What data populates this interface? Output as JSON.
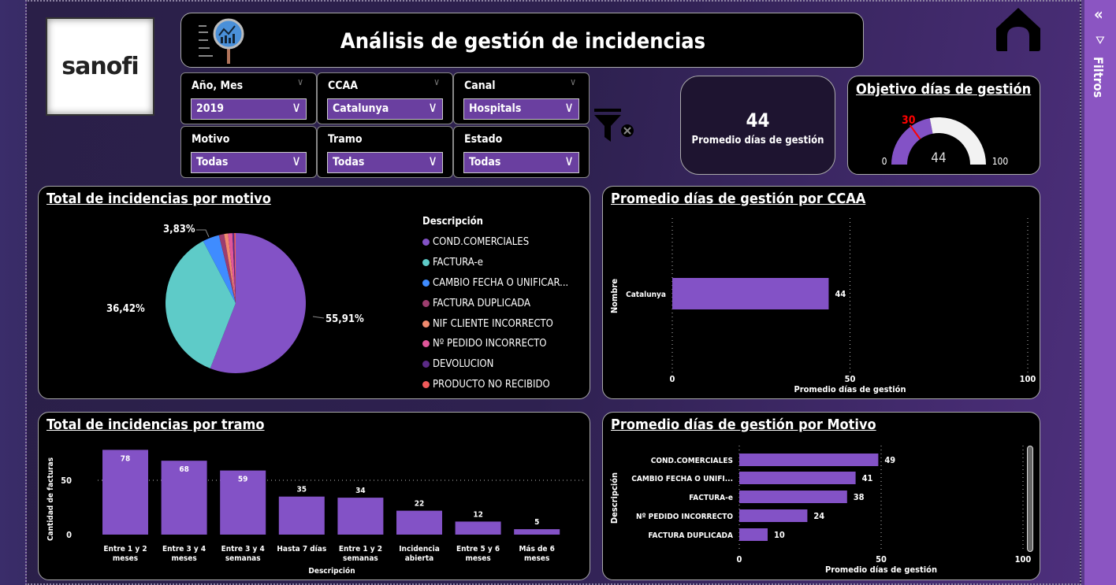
{
  "header": {
    "title": "Análisis de gestión de incidencias",
    "logo_text": "sanofi"
  },
  "slicers": [
    {
      "label": "Año, Mes",
      "value": "2019"
    },
    {
      "label": "CCAA",
      "value": "Catalunya"
    },
    {
      "label": "Canal",
      "value": "Hospitals"
    },
    {
      "label": "Motivo",
      "value": "Todas"
    },
    {
      "label": "Tramo",
      "value": "Todas"
    },
    {
      "label": "Estado",
      "value": "Todas"
    }
  ],
  "card": {
    "value": "44",
    "label": "Promedio días de gestión"
  },
  "gauge": {
    "title": "Objetivo días de gestión",
    "min": 0,
    "max": 100,
    "value": 44,
    "target": 30,
    "min_label": "0",
    "max_label": "100",
    "value_label": "44",
    "target_label": "30"
  },
  "filters_pane": {
    "label": "Filtros"
  },
  "colors": {
    "accent": "#8352c6",
    "target": "#ff0000"
  },
  "chart_data": [
    {
      "type": "pie",
      "title": "Total de incidencias por motivo",
      "legend_title": "Descripción",
      "legend_position": "right",
      "slices": [
        {
          "name": "COND.COMERCIALES",
          "value": 55.91,
          "label": "55,91%",
          "color": "#8352c6"
        },
        {
          "name": "FACTURA-e",
          "value": 36.42,
          "label": "36,42%",
          "color": "#5ecbc8"
        },
        {
          "name": "CAMBIO FECHA O UNIFICAR...",
          "value": 3.83,
          "label": "3,83%",
          "color": "#3f8cff"
        },
        {
          "name": "FACTURA DUPLICADA",
          "value": 1.2,
          "color": "#9c3d6e"
        },
        {
          "name": "NIF CLIENTE INCORRECTO",
          "value": 0.9,
          "color": "#f08a6e"
        },
        {
          "name": "Nº PEDIDO INCORRECTO",
          "value": 1.0,
          "color": "#e0569a"
        },
        {
          "name": "DEVOLUCION",
          "value": 0.4,
          "color": "#5b2a86"
        },
        {
          "name": "PRODUCTO NO RECIBIDO",
          "value": 0.34,
          "color": "#f05a5a"
        }
      ]
    },
    {
      "type": "bar",
      "orientation": "horizontal",
      "title": "Promedio días de gestión por CCAA",
      "ylabel": "Nombre",
      "xlabel": "Promedio días de gestión",
      "xlim": [
        0,
        100
      ],
      "ticks": [
        "0",
        "50",
        "100"
      ],
      "categories": [
        "Catalunya"
      ],
      "values": [
        44
      ]
    },
    {
      "type": "bar",
      "title": "Total de incidencias por tramo",
      "xlabel": "Descripción",
      "ylabel": "Cantidad de facturas",
      "ylim": [
        0,
        80
      ],
      "ticks": [
        "0",
        "50"
      ],
      "categories": [
        [
          "Entre 1 y 2",
          "meses"
        ],
        [
          "Entre 3 y 4",
          "meses"
        ],
        [
          "Entre 3 y 4",
          "semanas"
        ],
        [
          "Hasta 7 días"
        ],
        [
          "Entre 1 y 2",
          "semanas"
        ],
        [
          "Incidencia",
          "abierta"
        ],
        [
          "Entre 5 y 6",
          "meses"
        ],
        [
          "Más de 6",
          "meses"
        ]
      ],
      "values": [
        78,
        68,
        59,
        35,
        34,
        22,
        12,
        5
      ]
    },
    {
      "type": "bar",
      "orientation": "horizontal",
      "title": "Promedio días de gestión por Motivo",
      "ylabel": "Descripción",
      "xlabel": "Promedio días de gestión",
      "xlim": [
        0,
        100
      ],
      "ticks": [
        "0",
        "50",
        "100"
      ],
      "categories": [
        "COND.COMERCIALES",
        "CAMBIO FECHA O UNIFI...",
        "FACTURA-e",
        "Nº PEDIDO INCORRECTO",
        "FACTURA DUPLICADA"
      ],
      "values": [
        49,
        41,
        38,
        24,
        10
      ]
    }
  ]
}
